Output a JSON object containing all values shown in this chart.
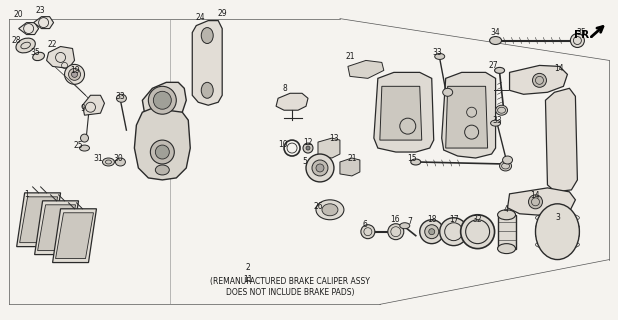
{
  "bg_color": "#f5f3ef",
  "line_color": "#2a2a2a",
  "text_color": "#1a1a1a",
  "fig_width": 6.18,
  "fig_height": 3.2,
  "dpi": 100,
  "note_line1": "(REMANUFACTURED BRAKE CALIPER ASSY",
  "note_line2": "DOES NOT INCLUDE BRAKE PADS)",
  "fr_label": "FR."
}
